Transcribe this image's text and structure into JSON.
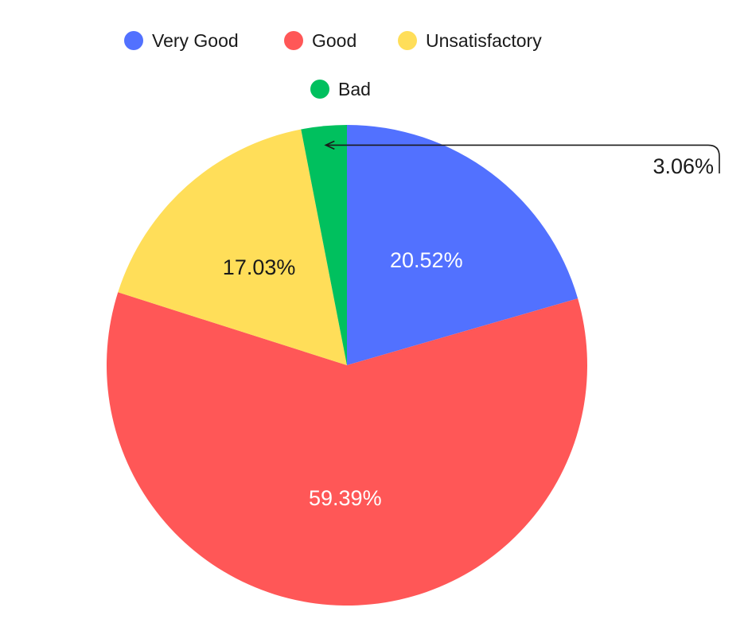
{
  "chart_data": {
    "type": "pie",
    "title": "",
    "slices": [
      {
        "name": "Very Good",
        "value": 20.52,
        "label": "20.52%",
        "color": "#5271FF",
        "label_color": "#FFFFFF"
      },
      {
        "name": "Good",
        "value": 59.39,
        "label": "59.39%",
        "color": "#FF5757",
        "label_color": "#FFFFFF"
      },
      {
        "name": "Unsatisfactory",
        "value": 17.03,
        "label": "17.03%",
        "color": "#FFDE59",
        "label_color": "#1A1A1A"
      },
      {
        "name": "Bad",
        "value": 3.06,
        "label": "3.06%",
        "color": "#00C05E",
        "label_color": "#1A1A1A",
        "callout": true
      }
    ],
    "start": "top",
    "direction": "clockwise",
    "legend": {
      "position": "top",
      "items": [
        "Very Good",
        "Good",
        "Unsatisfactory",
        "Bad"
      ]
    }
  }
}
